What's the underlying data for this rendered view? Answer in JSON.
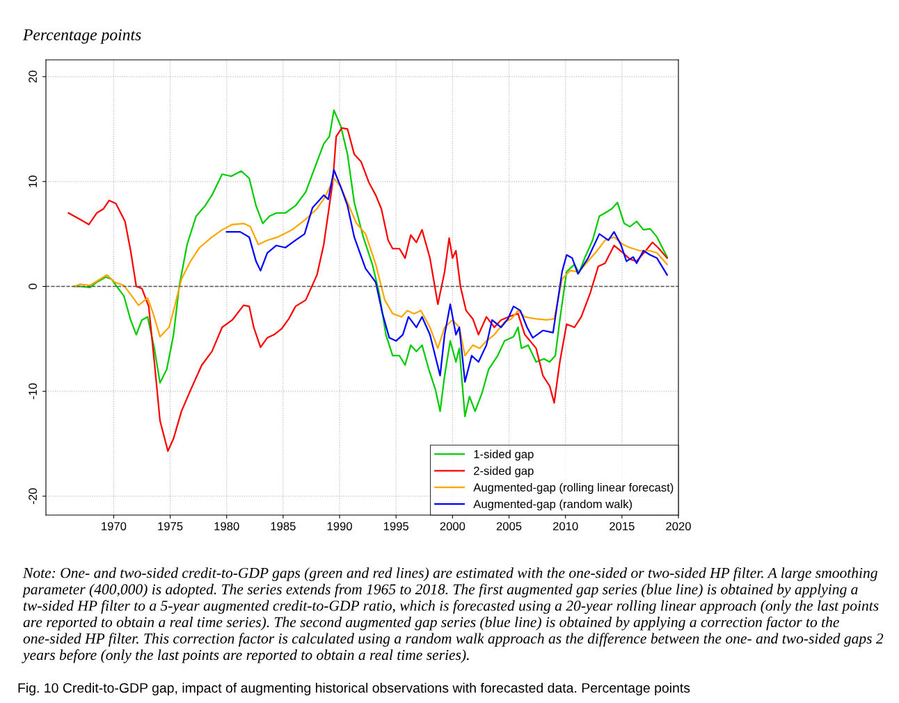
{
  "chart_data": {
    "type": "line",
    "title": "Percentage points",
    "xlim": [
      1964,
      2020
    ],
    "xticks": [
      1970,
      1975,
      1980,
      1985,
      1990,
      1995,
      2000,
      2005,
      2010,
      2015,
      2020
    ],
    "ylim": [
      -21.8,
      21.6
    ],
    "yticks": [
      -20,
      -10,
      0,
      10,
      20
    ],
    "grid": true,
    "legend": "bottom right",
    "line_style": "solid",
    "ref_lines": [
      {
        "axis": "y",
        "value": 0,
        "color": "#555555",
        "line_style": "dashed"
      }
    ],
    "series": [
      {
        "name": "1-sided gap",
        "color": "#00cc00",
        "x": [
          1966.5,
          1967.0,
          1967.9,
          1968.5,
          1969.3,
          1969.8,
          1970.2,
          1970.9,
          1971.5,
          1972.0,
          1972.5,
          1973.0,
          1973.6,
          1974.1,
          1974.7,
          1975.3,
          1975.8,
          1976.5,
          1977.3,
          1978.1,
          1978.7,
          1979.6,
          1980.4,
          1981.3,
          1982.0,
          1982.6,
          1983.2,
          1983.8,
          1984.4,
          1985.2,
          1986.1,
          1987.0,
          1987.8,
          1988.6,
          1989.1,
          1989.5,
          1990.1,
          1990.7,
          1991.3,
          1992.1,
          1992.9,
          1993.5,
          1994.1,
          1994.7,
          1995.3,
          1995.8,
          1996.3,
          1996.8,
          1997.3,
          1997.9,
          1998.5,
          1998.9,
          1999.3,
          1999.8,
          2000.3,
          2000.6,
          2001.1,
          2001.5,
          2002.0,
          2002.6,
          2003.2,
          2004.0,
          2004.6,
          2005.4,
          2005.8,
          2006.1,
          2006.7,
          2007.4,
          2008.1,
          2008.6,
          2009.1,
          2009.5,
          2010.1,
          2010.8,
          2011.2,
          2011.7,
          2012.4,
          2013.0,
          2013.5,
          2014.1,
          2014.6,
          2015.2,
          2015.7,
          2016.3,
          2016.9,
          2017.5,
          2018.1,
          2019.0
        ],
        "values": [
          0,
          0,
          -0.1,
          0.4,
          0.9,
          0.7,
          0.1,
          -0.9,
          -3.2,
          -4.6,
          -3.2,
          -2.9,
          -5.9,
          -9.2,
          -7.9,
          -4.6,
          0,
          4.0,
          6.7,
          7.7,
          8.7,
          10.7,
          10.5,
          11.0,
          10.3,
          7.7,
          6.0,
          6.7,
          7.0,
          7.0,
          7.7,
          9.0,
          11.3,
          13.6,
          14.3,
          16.8,
          15.3,
          12.6,
          8.0,
          4.7,
          2.1,
          -0.6,
          -4.6,
          -6.6,
          -6.6,
          -7.5,
          -5.6,
          -6.2,
          -5.6,
          -7.9,
          -9.9,
          -11.9,
          -8.5,
          -5.2,
          -7.2,
          -5.9,
          -12.4,
          -10.5,
          -11.9,
          -10.2,
          -7.9,
          -6.6,
          -5.2,
          -4.8,
          -3.9,
          -5.9,
          -5.6,
          -7.2,
          -6.9,
          -7.2,
          -6.6,
          -3.2,
          1.4,
          2.1,
          1.3,
          2.7,
          4.4,
          6.7,
          7.0,
          7.4,
          8.0,
          6.0,
          5.7,
          6.2,
          5.4,
          5.5,
          4.7,
          2.8
        ]
      },
      {
        "name": "2-sided gap",
        "color": "#ff0000",
        "x": [
          1966.0,
          1967.0,
          1967.8,
          1968.5,
          1969.1,
          1969.6,
          1970.2,
          1971.0,
          1971.5,
          1972.0,
          1972.5,
          1973.1,
          1973.6,
          1974.1,
          1974.8,
          1975.3,
          1976.0,
          1976.8,
          1977.8,
          1978.7,
          1979.6,
          1980.5,
          1981.5,
          1982.0,
          1982.4,
          1983.0,
          1983.6,
          1984.2,
          1984.9,
          1985.5,
          1986.1,
          1987.0,
          1988.0,
          1988.6,
          1989.4,
          1989.7,
          1990.2,
          1990.7,
          1991.3,
          1991.9,
          1992.6,
          1993.2,
          1993.7,
          1994.3,
          1994.7,
          1995.3,
          1995.8,
          1996.3,
          1996.8,
          1997.3,
          1998.0,
          1998.7,
          1999.3,
          1999.7,
          2000.0,
          2000.3,
          2000.7,
          2001.2,
          2001.8,
          2002.3,
          2003.0,
          2003.7,
          2004.3,
          2005.2,
          2005.8,
          2006.4,
          2007.4,
          2008.0,
          2008.6,
          2009.0,
          2009.5,
          2010.1,
          2010.8,
          2011.4,
          2012.2,
          2012.9,
          2013.5,
          2014.3,
          2015.1,
          2015.7,
          2016.3,
          2017.1,
          2017.7,
          2018.2,
          2019.0
        ],
        "values": [
          7.0,
          6.4,
          5.9,
          7.0,
          7.4,
          8.2,
          7.9,
          6.2,
          3.4,
          0,
          -0.2,
          -1.9,
          -7.2,
          -12.8,
          -15.7,
          -14.5,
          -11.9,
          -9.9,
          -7.5,
          -6.2,
          -3.9,
          -3.2,
          -1.8,
          -1.9,
          -3.9,
          -5.8,
          -4.9,
          -4.6,
          -4.0,
          -3.1,
          -1.9,
          -1.3,
          1.1,
          4.0,
          10.0,
          14.3,
          15.1,
          15.0,
          12.6,
          11.9,
          9.9,
          8.7,
          7.4,
          4.4,
          3.6,
          3.6,
          2.7,
          4.9,
          4.2,
          5.4,
          2.7,
          -1.7,
          1.4,
          4.6,
          2.7,
          3.4,
          0,
          -2.3,
          -3.1,
          -4.6,
          -2.9,
          -3.9,
          -3.2,
          -2.8,
          -2.6,
          -4.6,
          -5.9,
          -8.5,
          -9.5,
          -11.1,
          -7.2,
          -3.6,
          -3.9,
          -2.9,
          -0.6,
          1.9,
          2.2,
          3.9,
          3.2,
          2.6,
          2.4,
          3.4,
          4.2,
          3.7,
          2.7
        ]
      },
      {
        "name": "Augmented-gap (rolling linear forecast)",
        "color": "#ffa500",
        "x": [
          1966.5,
          1967.0,
          1967.9,
          1968.8,
          1969.4,
          1970.1,
          1970.9,
          1971.6,
          1972.2,
          1973.0,
          1973.5,
          1974.1,
          1974.9,
          1975.4,
          1976.0,
          1976.8,
          1977.6,
          1978.7,
          1979.6,
          1980.5,
          1981.5,
          1982.1,
          1982.8,
          1983.6,
          1984.5,
          1985.8,
          1987.0,
          1988.0,
          1988.7,
          1989.5,
          1990.1,
          1990.7,
          1991.5,
          1992.3,
          1993.2,
          1994.0,
          1994.7,
          1995.5,
          1996.0,
          1996.6,
          1997.2,
          1998.0,
          1998.7,
          1999.3,
          2000.0,
          2000.6,
          2001.1,
          2001.8,
          2002.4,
          2003.0,
          2003.7,
          2004.6,
          2005.2,
          2005.8,
          2006.4,
          2007.4,
          2008.3,
          2009.0,
          2009.7,
          2010.4,
          2011.2,
          2012.0,
          2012.8,
          2013.5,
          2014.3,
          2015.1,
          2015.7,
          2016.6,
          2017.5,
          2018.1,
          2019.0
        ],
        "values": [
          0,
          0.2,
          0.1,
          0.7,
          1.1,
          0.4,
          0.1,
          -0.9,
          -1.8,
          -1.1,
          -2.6,
          -4.8,
          -3.9,
          -1.9,
          0.7,
          2.4,
          3.7,
          4.7,
          5.4,
          5.9,
          6.0,
          5.7,
          4.0,
          4.4,
          4.7,
          5.4,
          6.4,
          7.4,
          8.5,
          10.3,
          9.5,
          8.0,
          6.0,
          5.0,
          2.1,
          -1.3,
          -2.6,
          -2.9,
          -2.3,
          -2.6,
          -2.3,
          -3.9,
          -5.9,
          -3.9,
          -3.2,
          -3.9,
          -6.6,
          -5.6,
          -5.9,
          -5.2,
          -4.6,
          -3.4,
          -3.1,
          -2.3,
          -2.9,
          -3.1,
          -3.2,
          -3.1,
          0.7,
          1.5,
          1.4,
          2.4,
          3.4,
          4.4,
          4.7,
          4.0,
          3.7,
          3.4,
          3.4,
          3.2,
          2.1
        ]
      },
      {
        "name": "Augmented-gap (random walk)",
        "color": "#0000ff",
        "x": [
          1980.0,
          1981.2,
          1982.0,
          1982.6,
          1983.0,
          1983.6,
          1984.4,
          1985.2,
          1986.1,
          1986.9,
          1987.6,
          1988.6,
          1989.0,
          1989.5,
          1990.1,
          1990.7,
          1991.3,
          1992.3,
          1993.2,
          1993.8,
          1994.4,
          1995.0,
          1995.6,
          1996.1,
          1996.8,
          1997.3,
          1998.0,
          1998.6,
          1998.9,
          1999.3,
          1999.8,
          2000.3,
          2000.6,
          2001.1,
          2001.7,
          2002.3,
          2003.0,
          2003.5,
          2004.3,
          2004.9,
          2005.4,
          2006.0,
          2006.6,
          2007.1,
          2008.0,
          2008.9,
          2009.7,
          2010.1,
          2010.6,
          2011.1,
          2012.0,
          2013.0,
          2013.8,
          2014.3,
          2014.9,
          2015.4,
          2016.0,
          2016.3,
          2016.9,
          2017.5,
          2018.1,
          2019.0
        ],
        "values": [
          5.2,
          5.2,
          4.7,
          2.4,
          1.5,
          3.2,
          3.9,
          3.7,
          4.4,
          5.0,
          7.5,
          8.7,
          8.3,
          11.1,
          9.5,
          7.7,
          4.7,
          1.7,
          0.4,
          -2.6,
          -4.9,
          -5.2,
          -4.6,
          -2.9,
          -3.9,
          -2.9,
          -4.6,
          -7.2,
          -8.5,
          -4.6,
          -1.7,
          -4.6,
          -3.9,
          -9.1,
          -6.6,
          -7.2,
          -5.6,
          -3.2,
          -3.9,
          -3.1,
          -1.9,
          -2.3,
          -3.9,
          -4.9,
          -4.2,
          -4.4,
          1.4,
          3.0,
          2.7,
          1.2,
          2.7,
          5.0,
          4.4,
          5.2,
          4.0,
          2.4,
          2.8,
          2.2,
          3.4,
          3.0,
          2.7,
          1.1
        ]
      }
    ],
    "annotations": [
      "Note: One- and two-sided credit-to-GDP gaps (green and red lines) are estimated with the one-sided or two-sided HP filter. A large smoothing parameter (400,000) is adopted. The series extends from 1965 to 2018. The first augmented gap series (blue line) is obtained by applying a tw-sided HP filter to a 5-year augmented credit-to-GDP ratio, which is forecasted using a 20-year rolling linear approach (only the last points are reported to obtain a real time series). The second augmented gap series (blue line) is obtained by applying a correction factor to the one-sided HP filter. This correction factor is calculated using a random walk approach as the difference between the one- and two-sided gaps 2 years before (only the last points are reported to obtain a real time series).",
      "Fig. 10 Credit-to-GDP gap, impact of augmenting historical observations with forecasted data. Percentage points"
    ]
  }
}
